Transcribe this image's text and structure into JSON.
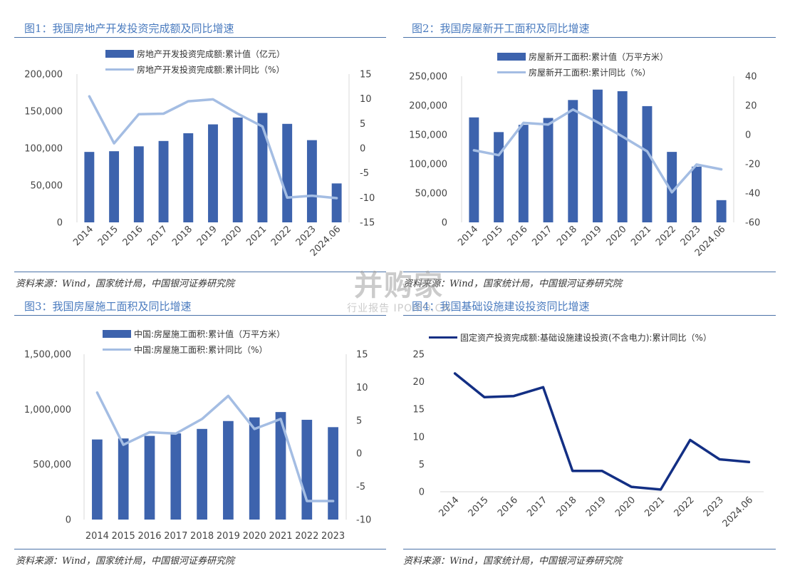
{
  "panels": [
    {
      "title": "图1：我国房地产开发投资完成额及同比增速",
      "legend_bar": "房地产开发投资完成额:累计值（亿元）",
      "legend_line": "房地产开发投资完成额:累计同比（%）",
      "source": "资料来源：Wind，国家统计局，中国银河证券研究院"
    },
    {
      "title": "图2：我国房屋新开工面积及同比增速",
      "legend_bar": "房屋新开工面积:累计值（万平方米）",
      "legend_line": "房屋新开工面积:累计同比（%）",
      "source": "资料来源：Wind，国家统计局，中国银河证券研究院"
    },
    {
      "title": "图3：我国房屋施工面积及同比增速",
      "legend_bar": "中国:房屋施工面积:累计值（万平方米）",
      "legend_line": "中国:房屋施工面积:累计同比（%）",
      "source": "资料来源：Wind，国家统计局，中国银河证券研究院"
    },
    {
      "title": "图4：我国基础设施建设投资同比增速",
      "legend_line": "固定资产投资完成额:基础设施建设投资(不含电力):累计同比（%）",
      "source": "资料来源：Wind，国家统计局，中国银河证券研究院"
    }
  ],
  "watermark": {
    "line1": "并购家",
    "line2": "行业报告 IPOIPO.CN"
  },
  "colors": {
    "bar": "#3d63ad",
    "line_light": "#a4bde3",
    "line_dark": "#132f84",
    "title": "#4a7bbf",
    "rule": "#4a72a8"
  },
  "chart_data": [
    {
      "type": "bar+line",
      "categories": [
        "2014",
        "2015",
        "2016",
        "2017",
        "2018",
        "2019",
        "2020",
        "2021",
        "2022",
        "2023",
        "2024.06"
      ],
      "series": [
        {
          "name": "房地产开发投资完成额:累计值（亿元）",
          "type": "bar",
          "axis": "left",
          "values": [
            95036,
            95979,
            102581,
            109799,
            120264,
            132194,
            141443,
            147602,
            132895,
            110913,
            52529
          ]
        },
        {
          "name": "房地产开发投资完成额:累计同比（%）",
          "type": "line",
          "axis": "right",
          "values": [
            10.5,
            1.0,
            6.9,
            7.0,
            9.5,
            9.9,
            7.0,
            4.4,
            -10.0,
            -9.6,
            -10.1
          ]
        }
      ],
      "left_axis": {
        "min": 0,
        "max": 200000,
        "ticks": [
          "0",
          "50,000",
          "100,000",
          "150,000",
          "200,000"
        ]
      },
      "right_axis": {
        "min": -15,
        "max": 15,
        "ticks": [
          "-15",
          "-10",
          "-5",
          "0",
          "5",
          "10",
          "15"
        ]
      },
      "xlabel_rotate": true
    },
    {
      "type": "bar+line",
      "categories": [
        "2014",
        "2015",
        "2016",
        "2017",
        "2018",
        "2019",
        "2020",
        "2021",
        "2022",
        "2023",
        "2024.06"
      ],
      "series": [
        {
          "name": "房屋新开工面积:累计值（万平方米）",
          "type": "bar",
          "axis": "left",
          "values": [
            179592,
            154454,
            166928,
            178654,
            209342,
            227154,
            224433,
            198895,
            120587,
            95376,
            38023
          ]
        },
        {
          "name": "房屋新开工面积:累计同比（%）",
          "type": "line",
          "axis": "right",
          "values": [
            -10.7,
            -14.0,
            8.1,
            7.0,
            17.2,
            8.5,
            -1.2,
            -11.4,
            -39.4,
            -20.4,
            -23.7
          ]
        }
      ],
      "left_axis": {
        "min": 0,
        "max": 250000,
        "ticks": [
          "0",
          "50,000",
          "100,000",
          "150,000",
          "200,000",
          "250,000"
        ]
      },
      "right_axis": {
        "min": -60,
        "max": 40,
        "ticks": [
          "-60",
          "-40",
          "-20",
          "0",
          "20",
          "40"
        ]
      },
      "xlabel_rotate": true
    },
    {
      "type": "bar+line",
      "categories": [
        "2014",
        "2015",
        "2016",
        "2017",
        "2018",
        "2019",
        "2020",
        "2021",
        "2022",
        "2023"
      ],
      "series": [
        {
          "name": "中国:房屋施工面积:累计值（万平方米）",
          "type": "bar",
          "axis": "left",
          "values": [
            726482,
            735693,
            758975,
            781484,
            822300,
            893821,
            926759,
            975387,
            904999,
            838364
          ]
        },
        {
          "name": "中国:房屋施工面积:累计同比（%）",
          "type": "line",
          "axis": "right",
          "values": [
            9.2,
            1.3,
            3.2,
            3.0,
            5.2,
            8.7,
            3.7,
            5.2,
            -7.2,
            -7.2
          ]
        }
      ],
      "left_axis": {
        "min": 0,
        "max": 1500000,
        "ticks": [
          "0",
          "500,000",
          "1,000,000",
          "1,500,000"
        ]
      },
      "right_axis": {
        "min": -10,
        "max": 15,
        "ticks": [
          "-10",
          "-5",
          "0",
          "5",
          "10",
          "15"
        ]
      },
      "xlabel_rotate": false
    },
    {
      "type": "line",
      "categories": [
        "2014",
        "2015",
        "2016",
        "2017",
        "2018",
        "2019",
        "2020",
        "2021",
        "2022",
        "2023",
        "2024.06"
      ],
      "series": [
        {
          "name": "固定资产投资完成额:基础设施建设投资(不含电力):累计同比（%）",
          "type": "line",
          "axis": "left",
          "values": [
            21.5,
            17.2,
            17.4,
            19.0,
            3.8,
            3.8,
            0.9,
            0.4,
            9.4,
            5.9,
            5.4
          ]
        }
      ],
      "left_axis": {
        "min": 0,
        "max": 25,
        "ticks": [
          "0",
          "5",
          "10",
          "15",
          "20",
          "25"
        ]
      },
      "xlabel_rotate": true
    }
  ]
}
